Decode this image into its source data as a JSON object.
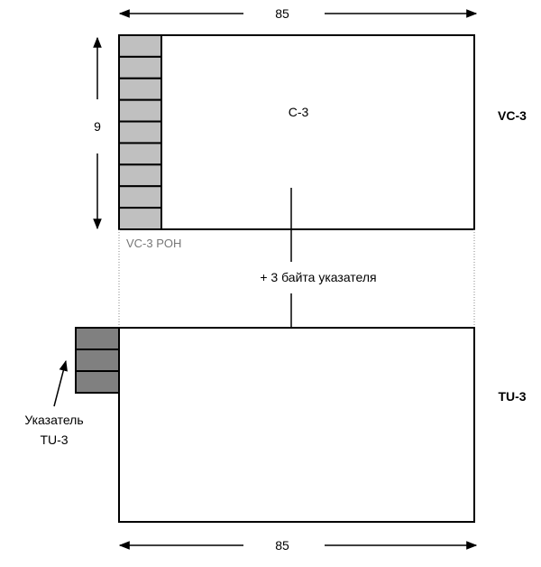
{
  "vc3": {
    "width_label": "85",
    "height_label": "9",
    "payload_label": "C-3",
    "poh_label": "VC-3 POH",
    "side_label": "VC-3",
    "poh_rows": 9
  },
  "mapping": {
    "pointer_note": "+ 3 байта указателя"
  },
  "tu3": {
    "side_label": "TU-3",
    "pointer_label_line1": "Указатель",
    "pointer_label_line2": "TU-3",
    "pointer_rows": 3,
    "width_label": "85"
  },
  "colors": {
    "poh_fill": "#c0c0c0",
    "pointer_fill": "#808080",
    "stroke": "#000000",
    "poh_text": "#777777"
  }
}
